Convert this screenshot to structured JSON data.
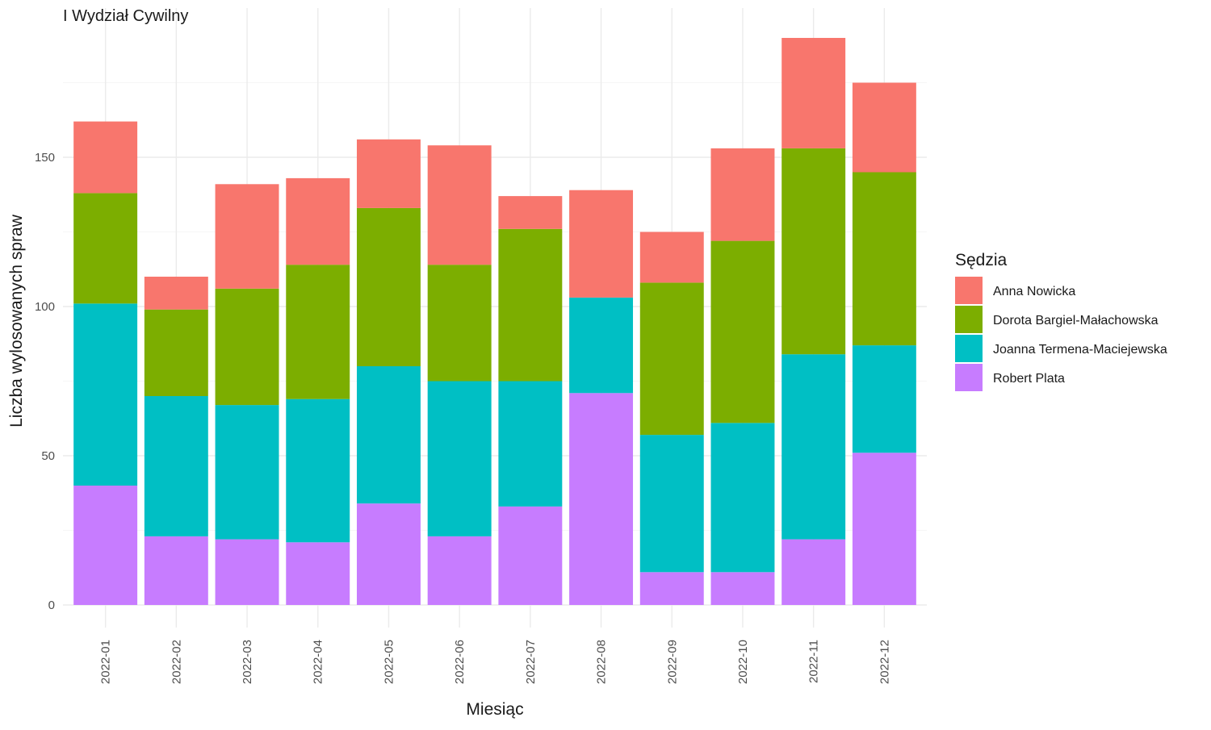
{
  "chart_data": {
    "type": "bar",
    "stacked": true,
    "title": "I Wydział Cywilny",
    "xlabel": "Miesiąc",
    "ylabel": "Liczba wylosowanych spraw",
    "ylim": [
      0,
      190
    ],
    "yticks": [
      0,
      50,
      100,
      150
    ],
    "grid": true,
    "legend": {
      "title": "Sędzia",
      "position": "right"
    },
    "categories": [
      "2022-01",
      "2022-02",
      "2022-03",
      "2022-04",
      "2022-05",
      "2022-06",
      "2022-07",
      "2022-08",
      "2022-09",
      "2022-10",
      "2022-11",
      "2022-12"
    ],
    "series": [
      {
        "name": "Robert Plata",
        "color": "#C77CFF",
        "values": [
          40,
          23,
          22,
          21,
          34,
          23,
          33,
          71,
          11,
          11,
          22,
          51
        ]
      },
      {
        "name": "Joanna Termena-Maciejewska",
        "color": "#00BFC4",
        "values": [
          61,
          47,
          45,
          48,
          46,
          52,
          42,
          32,
          46,
          50,
          62,
          36
        ]
      },
      {
        "name": "Dorota Bargiel-Małachowska",
        "color": "#7CAE00",
        "values": [
          37,
          29,
          39,
          45,
          53,
          39,
          51,
          0,
          51,
          61,
          69,
          58
        ]
      },
      {
        "name": "Anna Nowicka",
        "color": "#F8766D",
        "values": [
          24,
          11,
          35,
          29,
          23,
          40,
          11,
          36,
          17,
          31,
          37,
          30
        ]
      }
    ],
    "legend_order": [
      "Anna Nowicka",
      "Dorota Bargiel-Małachowska",
      "Joanna Termena-Maciejewska",
      "Robert Plata"
    ]
  }
}
